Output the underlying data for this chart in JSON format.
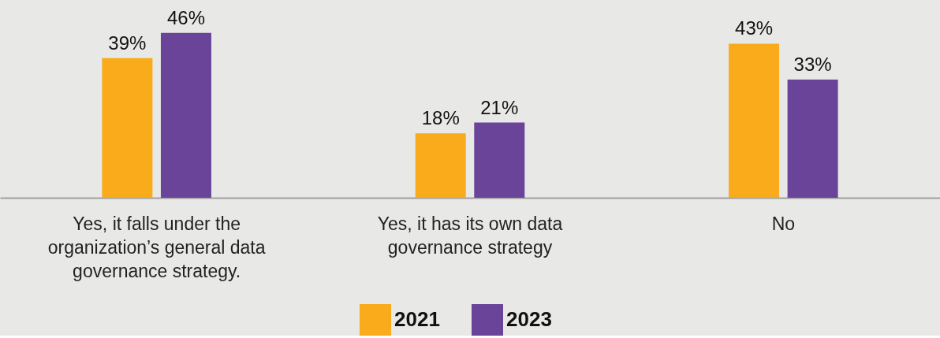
{
  "chart_data": {
    "type": "bar",
    "categories": [
      "Yes, it falls under the organization’s general data governance strategy.",
      "Yes, it has its own data governance strategy",
      "No"
    ],
    "series": [
      {
        "name": "2021",
        "color": "#f9ab1c",
        "values": [
          39,
          18,
          43
        ],
        "value_labels": [
          "39%",
          "18%",
          "43%"
        ]
      },
      {
        "name": "2023",
        "color": "#6a4499",
        "values": [
          46,
          21,
          33
        ],
        "value_labels": [
          "46%",
          "21%",
          "33%"
        ]
      }
    ],
    "legend": "bottom",
    "grid": false
  }
}
